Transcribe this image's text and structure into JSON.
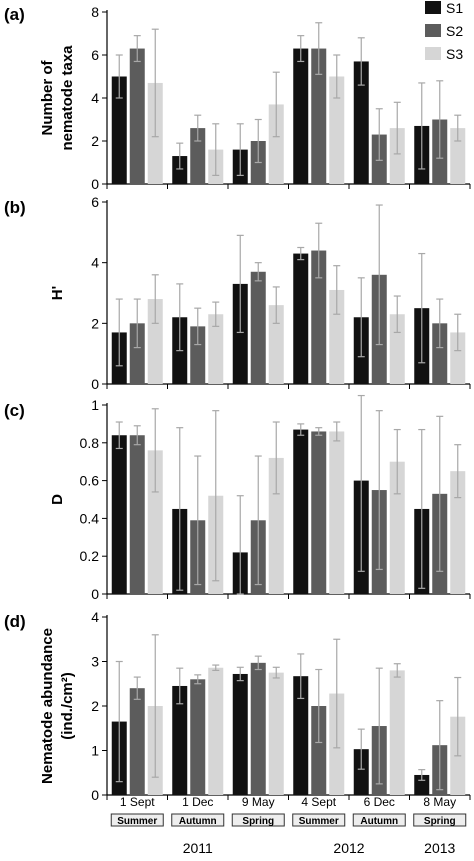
{
  "colors": {
    "S1": "#111111",
    "S2": "#5c5c5c",
    "S3": "#d6d6d6",
    "error_bar": "#a8a8a8",
    "axis": "#000000"
  },
  "legend": {
    "position": "top-right",
    "entries": [
      "S1",
      "S2",
      "S3"
    ]
  },
  "sampling": {
    "dates": [
      "1 Sept",
      "1 Dec",
      "9 May",
      "4 Sept",
      "6 Dec",
      "8 May"
    ],
    "seasons": [
      "Summer",
      "Autumn",
      "Spring",
      "Summer",
      "Autumn",
      "Spring"
    ],
    "years": [
      {
        "label": "2011",
        "span": [
          0,
          2
        ]
      },
      {
        "label": "2012",
        "span": [
          3,
          4
        ]
      },
      {
        "label": "2013",
        "span": [
          5,
          5
        ]
      }
    ]
  },
  "chart_data": [
    {
      "type": "bar",
      "panel": "(a)",
      "ylabel": [
        "Number of",
        "nematode taxa"
      ],
      "ylim": [
        0,
        8
      ],
      "yticks": [
        0,
        2,
        4,
        6,
        8
      ],
      "ytick_labels": [
        "0",
        "2",
        "4",
        "6",
        "8"
      ],
      "series": [
        {
          "name": "S1",
          "values": [
            5.0,
            1.3,
            1.6,
            6.3,
            5.7,
            2.7
          ],
          "err": [
            1.0,
            0.6,
            1.2,
            0.6,
            1.1,
            2.0
          ]
        },
        {
          "name": "S2",
          "values": [
            6.3,
            2.6,
            2.0,
            6.3,
            2.3,
            3.0
          ],
          "err": [
            0.6,
            0.6,
            1.0,
            1.2,
            1.2,
            1.8
          ]
        },
        {
          "name": "S3",
          "values": [
            4.7,
            1.6,
            3.7,
            5.0,
            2.6,
            2.6
          ],
          "err": [
            2.5,
            1.2,
            1.5,
            1.0,
            1.2,
            0.6
          ]
        }
      ]
    },
    {
      "type": "bar",
      "panel": "(b)",
      "ylabel": [
        "H'"
      ],
      "ylim": [
        0,
        6
      ],
      "yticks": [
        0,
        2,
        4,
        6
      ],
      "ytick_labels": [
        "0",
        "2",
        "4",
        "6"
      ],
      "series": [
        {
          "name": "S1",
          "values": [
            1.7,
            2.2,
            3.3,
            4.3,
            2.2,
            2.5
          ],
          "err": [
            1.1,
            1.1,
            1.6,
            0.2,
            1.3,
            1.8
          ]
        },
        {
          "name": "S2",
          "values": [
            2.0,
            1.9,
            3.7,
            4.4,
            3.6,
            2.0
          ],
          "err": [
            0.8,
            0.6,
            0.3,
            0.9,
            2.3,
            0.8
          ]
        },
        {
          "name": "S3",
          "values": [
            2.8,
            2.3,
            2.6,
            3.1,
            2.3,
            1.7
          ],
          "err": [
            0.8,
            0.4,
            0.6,
            0.8,
            0.6,
            0.6
          ]
        }
      ]
    },
    {
      "type": "bar",
      "panel": "(c)",
      "ylabel": [
        "D"
      ],
      "ylim": [
        0,
        1
      ],
      "yticks": [
        0,
        0.2,
        0.4,
        0.6,
        0.8,
        1
      ],
      "ytick_labels": [
        "0",
        "0.2",
        "0.4",
        "0.6",
        "0.8",
        "1"
      ],
      "series": [
        {
          "name": "S1",
          "values": [
            0.84,
            0.45,
            0.22,
            0.87,
            0.6,
            0.45
          ],
          "err": [
            0.07,
            0.43,
            0.3,
            0.03,
            0.48,
            0.42
          ]
        },
        {
          "name": "S2",
          "values": [
            0.84,
            0.39,
            0.39,
            0.86,
            0.55,
            0.53
          ],
          "err": [
            0.05,
            0.34,
            0.34,
            0.02,
            0.42,
            0.41
          ]
        },
        {
          "name": "S3",
          "values": [
            0.76,
            0.52,
            0.72,
            0.86,
            0.7,
            0.65
          ],
          "err": [
            0.22,
            0.45,
            0.19,
            0.05,
            0.17,
            0.14
          ]
        }
      ]
    },
    {
      "type": "bar",
      "panel": "(d)",
      "ylabel": [
        "Nematode abundance",
        "(ind./cm²)"
      ],
      "ylim": [
        0,
        4
      ],
      "yticks": [
        0,
        1,
        2,
        3,
        4
      ],
      "ytick_labels": [
        "0",
        "1",
        "2",
        "3",
        "4"
      ],
      "series": [
        {
          "name": "S1",
          "values": [
            1.65,
            2.45,
            2.72,
            2.67,
            1.03,
            0.45
          ],
          "err": [
            1.35,
            0.4,
            0.15,
            0.5,
            0.45,
            0.12
          ]
        },
        {
          "name": "S2",
          "values": [
            2.4,
            2.6,
            2.97,
            2.0,
            1.55,
            1.12
          ],
          "err": [
            0.25,
            0.1,
            0.15,
            0.82,
            1.3,
            1.0
          ]
        },
        {
          "name": "S3",
          "values": [
            2.0,
            2.86,
            2.75,
            2.28,
            2.8,
            1.76
          ],
          "err": [
            1.6,
            0.06,
            0.12,
            1.22,
            0.15,
            0.88
          ]
        }
      ]
    }
  ]
}
